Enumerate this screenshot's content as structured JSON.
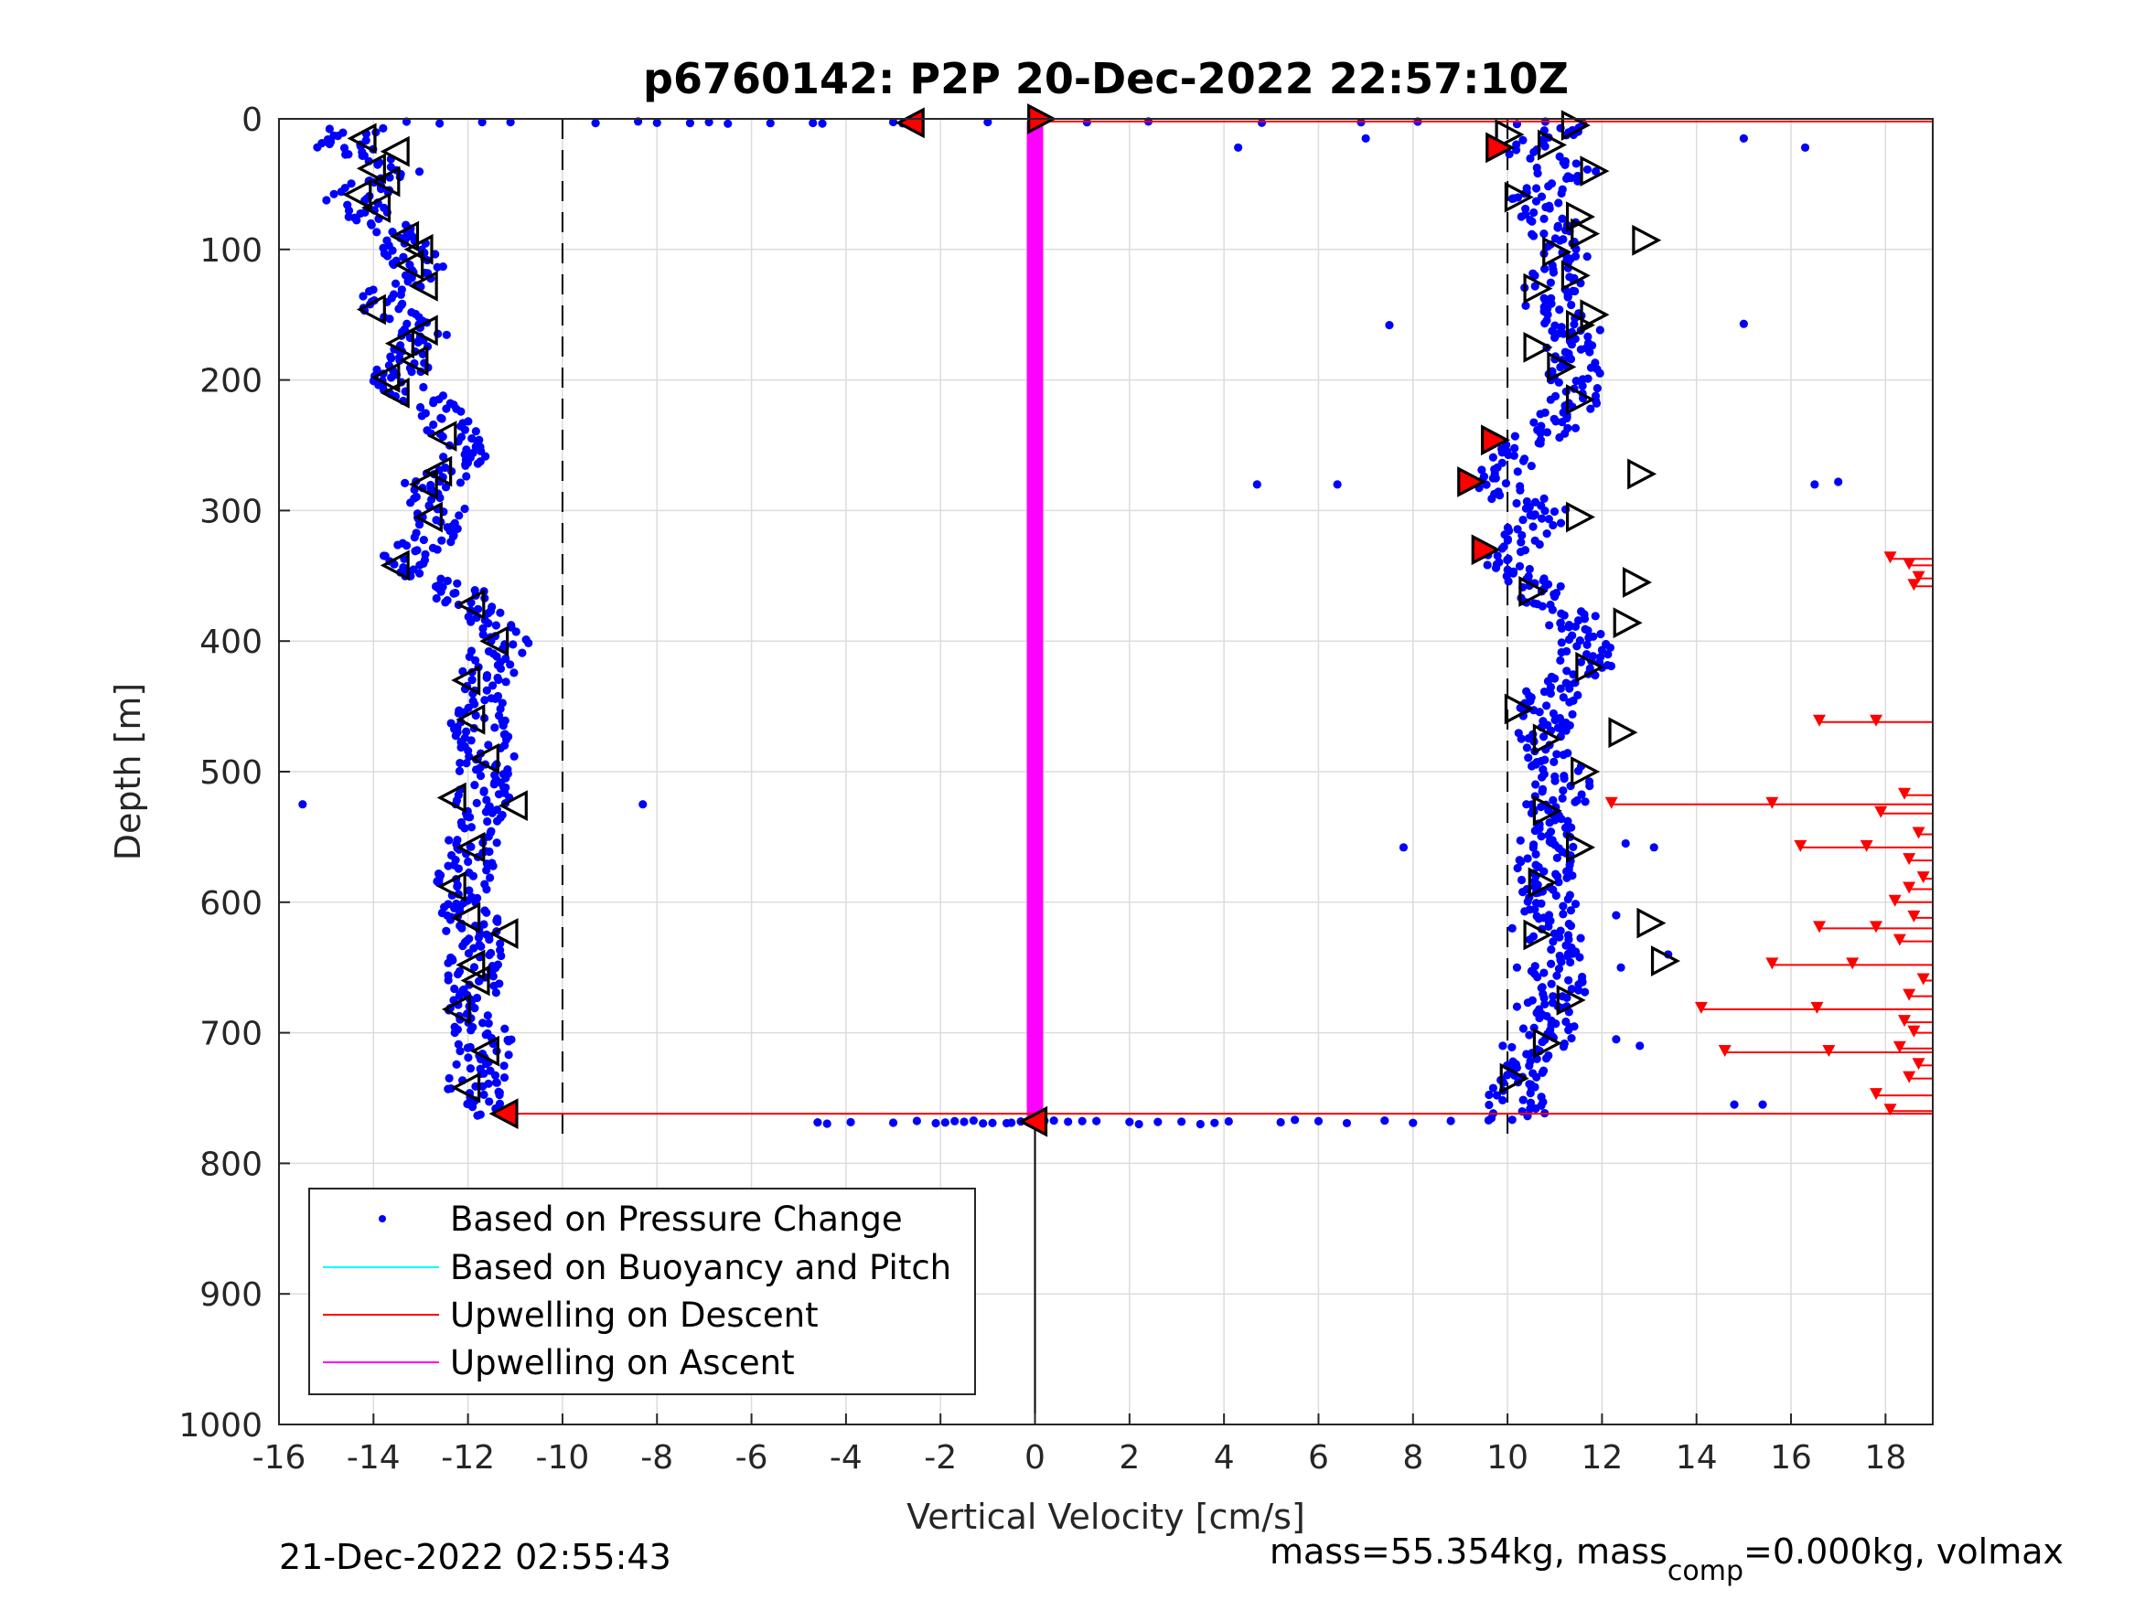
{
  "chart_data": {
    "type": "scatter",
    "title": "p6760142: P2P 20-Dec-2022 22:57:10Z",
    "xlabel": "Vertical Velocity [cm/s]",
    "ylabel": "Depth [m]",
    "xlim": [
      -16,
      19
    ],
    "ylim": [
      0,
      1000
    ],
    "y_reversed": true,
    "x_ticks": [
      "-16",
      "-14",
      "-12",
      "-10",
      "-8",
      "-6",
      "-4",
      "-2",
      "0",
      "2",
      "4",
      "6",
      "8",
      "10",
      "12",
      "14",
      "16",
      "18"
    ],
    "y_ticks": [
      "0",
      "100",
      "200",
      "300",
      "400",
      "500",
      "600",
      "700",
      "800",
      "900",
      "1000"
    ],
    "grid": true,
    "legend_position": "bottom-left",
    "reference_lines": {
      "x_dashed": [
        -10,
        10
      ],
      "x_solid": [
        0
      ]
    },
    "series": [
      {
        "name": "Based on Pressure Change",
        "color": "#0000ff",
        "descent_profile": [
          [
            5,
            -14.3
          ],
          [
            20,
            -14.8
          ],
          [
            40,
            -13.5
          ],
          [
            60,
            -14.5
          ],
          [
            80,
            -13.8
          ],
          [
            100,
            -13.2
          ],
          [
            120,
            -13.0
          ],
          [
            140,
            -14.0
          ],
          [
            160,
            -12.8
          ],
          [
            180,
            -13.3
          ],
          [
            200,
            -13.5
          ],
          [
            220,
            -12.8
          ],
          [
            240,
            -12.3
          ],
          [
            260,
            -12.2
          ],
          [
            280,
            -12.8
          ],
          [
            300,
            -12.6
          ],
          [
            320,
            -12.7
          ],
          [
            340,
            -13.4
          ],
          [
            360,
            -12.3
          ],
          [
            380,
            -11.6
          ],
          [
            400,
            -11.3
          ],
          [
            420,
            -11.5
          ],
          [
            440,
            -11.9
          ],
          [
            460,
            -11.8
          ],
          [
            480,
            -11.6
          ],
          [
            500,
            -11.6
          ],
          [
            520,
            -11.7
          ],
          [
            540,
            -11.8
          ],
          [
            560,
            -11.9
          ],
          [
            580,
            -12.1
          ],
          [
            600,
            -12.0
          ],
          [
            620,
            -11.9
          ],
          [
            640,
            -11.9
          ],
          [
            660,
            -11.9
          ],
          [
            680,
            -12.0
          ],
          [
            700,
            -11.7
          ],
          [
            720,
            -11.6
          ],
          [
            740,
            -11.9
          ],
          [
            760,
            -11.4
          ]
        ],
        "ascent_profile": [
          [
            5,
            11.2
          ],
          [
            20,
            10.3
          ],
          [
            40,
            11.3
          ],
          [
            60,
            10.5
          ],
          [
            80,
            10.9
          ],
          [
            100,
            11.2
          ],
          [
            120,
            11.0
          ],
          [
            140,
            10.8
          ],
          [
            160,
            11.4
          ],
          [
            180,
            11.2
          ],
          [
            200,
            11.5
          ],
          [
            220,
            11.4
          ],
          [
            240,
            10.8
          ],
          [
            260,
            10.0
          ],
          [
            280,
            9.6
          ],
          [
            300,
            10.8
          ],
          [
            320,
            10.2
          ],
          [
            340,
            9.9
          ],
          [
            360,
            10.6
          ],
          [
            380,
            11.3
          ],
          [
            400,
            11.6
          ],
          [
            420,
            11.6
          ],
          [
            440,
            10.9
          ],
          [
            460,
            10.8
          ],
          [
            480,
            10.8
          ],
          [
            500,
            11.2
          ],
          [
            520,
            11.1
          ],
          [
            540,
            10.9
          ],
          [
            560,
            10.8
          ],
          [
            580,
            10.8
          ],
          [
            600,
            10.9
          ],
          [
            620,
            11.0
          ],
          [
            640,
            11.0
          ],
          [
            660,
            11.1
          ],
          [
            680,
            11.0
          ],
          [
            700,
            10.9
          ],
          [
            720,
            10.4
          ],
          [
            740,
            10.1
          ],
          [
            760,
            10.2
          ]
        ],
        "surface_row": {
          "depth": 2,
          "x": [
            -13.3,
            -12.6,
            -11.7,
            -11.1,
            -9.3,
            -8.4,
            -8.0,
            -7.3,
            -6.9,
            -6.5,
            -5.6,
            -4.7,
            -4.5,
            -3.0,
            -2.8,
            -1.0,
            0.0,
            1.1,
            2.4,
            4.8,
            6.9,
            8.1,
            10.2,
            10.8,
            11.6
          ]
        },
        "bottom_row": {
          "depth": 768,
          "x": [
            -4.6,
            -4.4,
            -3.9,
            -3.0,
            -2.5,
            -2.1,
            -1.9,
            -1.7,
            -1.5,
            -1.3,
            -1.1,
            -0.9,
            -0.6,
            -0.5,
            -0.3,
            -0.1,
            0.0,
            0.2,
            0.4,
            0.7,
            1.0,
            1.3,
            2.0,
            2.2,
            2.6,
            3.1,
            3.5,
            3.8,
            4.1,
            5.2,
            5.5,
            6.0,
            6.6,
            7.4,
            8.0,
            8.8,
            9.6,
            10.1
          ]
        },
        "outliers": [
          [
            525,
            -15.5
          ],
          [
            525,
            -8.3
          ],
          [
            22,
            4.3
          ],
          [
            15,
            7.0
          ],
          [
            158,
            7.5
          ],
          [
            280,
            4.7
          ],
          [
            280,
            6.4
          ],
          [
            558,
            7.8
          ],
          [
            15,
            15.0
          ],
          [
            22,
            16.3
          ],
          [
            157,
            15.0
          ],
          [
            280,
            16.5
          ],
          [
            278,
            17.0
          ],
          [
            755,
            14.8
          ],
          [
            755,
            15.4
          ],
          [
            640,
            13.4
          ],
          [
            650,
            12.4
          ],
          [
            610,
            12.3
          ],
          [
            555,
            12.5
          ],
          [
            558,
            13.1
          ],
          [
            705,
            12.3
          ],
          [
            710,
            12.8
          ],
          [
            620,
            10.1
          ],
          [
            650,
            10.2
          ],
          [
            680,
            10.2
          ],
          [
            580,
            10.6
          ],
          [
            525,
            10.4
          ],
          [
            710,
            9.9
          ]
        ]
      },
      {
        "name": "Based on Buoyancy and Pitch",
        "color": "#00ffff",
        "values": []
      },
      {
        "name": "Upwelling on Descent",
        "color": "#ff0000",
        "lines": [
          [
            2,
            0.0,
            19
          ],
          [
            762,
            -11.2,
            19
          ]
        ],
        "segments": [
          [
            337,
            18.1,
            19
          ],
          [
            342,
            18.5,
            19
          ],
          [
            352,
            18.7,
            19
          ],
          [
            358,
            18.6,
            19
          ],
          [
            462,
            16.6,
            19
          ],
          [
            525,
            12.2,
            19
          ],
          [
            532,
            17.9,
            19
          ],
          [
            518,
            18.4,
            19
          ],
          [
            548,
            18.7,
            19
          ],
          [
            558,
            16.2,
            19
          ],
          [
            568,
            18.5,
            19
          ],
          [
            582,
            18.8,
            19
          ],
          [
            590,
            18.5,
            19
          ],
          [
            600,
            18.2,
            19
          ],
          [
            612,
            18.6,
            19
          ],
          [
            620,
            16.6,
            19
          ],
          [
            630,
            18.3,
            19
          ],
          [
            648,
            15.6,
            19
          ],
          [
            660,
            18.8,
            19
          ],
          [
            672,
            18.5,
            19
          ],
          [
            682,
            14.1,
            19
          ],
          [
            692,
            18.4,
            19
          ],
          [
            700,
            18.6,
            19
          ],
          [
            712,
            18.3,
            19
          ],
          [
            715,
            14.6,
            19
          ],
          [
            725,
            18.7,
            19
          ],
          [
            735,
            18.5,
            19
          ],
          [
            748,
            17.8,
            19
          ],
          [
            760,
            18.1,
            19
          ]
        ]
      },
      {
        "name": "Upwelling on Ascent",
        "color": "#ff00ff",
        "lines": [
          [
            2,
            0,
            768,
            0
          ]
        ]
      }
    ],
    "markers_descent_left": [
      [
        15,
        -14.2
      ],
      [
        25,
        -13.5
      ],
      [
        38,
        -14.0
      ],
      [
        48,
        -13.7
      ],
      [
        58,
        -14.3
      ],
      [
        68,
        -13.9
      ],
      [
        90,
        -13.3
      ],
      [
        100,
        -13.0
      ],
      [
        112,
        -13.2
      ],
      [
        128,
        -12.9
      ],
      [
        146,
        -14.0
      ],
      [
        162,
        -12.9
      ],
      [
        172,
        -13.4
      ],
      [
        185,
        -13.1
      ],
      [
        198,
        -13.7
      ],
      [
        210,
        -13.5
      ],
      [
        243,
        -12.5
      ],
      [
        270,
        -12.6
      ],
      [
        280,
        -12.9
      ],
      [
        305,
        -12.8
      ],
      [
        342,
        -13.5
      ],
      [
        372,
        -11.9
      ],
      [
        400,
        -11.4
      ],
      [
        430,
        -12.0
      ],
      [
        460,
        -11.9
      ],
      [
        490,
        -11.6
      ],
      [
        520,
        -12.3
      ],
      [
        526,
        -11.0
      ],
      [
        558,
        -11.9
      ],
      [
        588,
        -12.3
      ],
      [
        612,
        -12.0
      ],
      [
        624,
        -11.2
      ],
      [
        648,
        -11.9
      ],
      [
        660,
        -11.8
      ],
      [
        682,
        -12.2
      ],
      [
        714,
        -11.6
      ],
      [
        742,
        -12.0
      ]
    ],
    "markers_ascent_right": [
      [
        5,
        11.4
      ],
      [
        12,
        10.0
      ],
      [
        20,
        10.9
      ],
      [
        40,
        11.8
      ],
      [
        60,
        10.2
      ],
      [
        75,
        11.5
      ],
      [
        88,
        11.6
      ],
      [
        93,
        12.9
      ],
      [
        102,
        11.0
      ],
      [
        120,
        11.4
      ],
      [
        130,
        10.6
      ],
      [
        150,
        11.8
      ],
      [
        158,
        11.5
      ],
      [
        175,
        10.6
      ],
      [
        190,
        11.1
      ],
      [
        215,
        11.5
      ],
      [
        272,
        12.8
      ],
      [
        305,
        11.5
      ],
      [
        355,
        12.7
      ],
      [
        362,
        10.5
      ],
      [
        386,
        12.5
      ],
      [
        420,
        11.7
      ],
      [
        452,
        10.2
      ],
      [
        470,
        12.4
      ],
      [
        475,
        10.8
      ],
      [
        500,
        11.6
      ],
      [
        530,
        10.8
      ],
      [
        558,
        11.5
      ],
      [
        585,
        10.7
      ],
      [
        616,
        13.0
      ],
      [
        625,
        10.6
      ],
      [
        645,
        13.3
      ],
      [
        675,
        11.3
      ],
      [
        708,
        10.8
      ],
      [
        735,
        10.1
      ]
    ],
    "markers_red_left": [
      [
        3,
        -2.6
      ],
      [
        762,
        -11.2
      ],
      [
        768,
        0.0
      ]
    ],
    "markers_red_right": [
      [
        0,
        0.1
      ],
      [
        22,
        9.8
      ],
      [
        246,
        9.7
      ],
      [
        278,
        9.2
      ],
      [
        330,
        9.5
      ]
    ],
    "legend": [
      "Based on Pressure Change",
      "Based on Buoyancy and Pitch",
      "Upwelling on Descent",
      "Upwelling on Ascent"
    ],
    "footer_left": "21-Dec-2022 02:55:43",
    "footer_right_prefix": "mass=55.354kg, mass",
    "footer_right_sub": "comp",
    "footer_right_suffix": "=0.000kg, volmax"
  }
}
